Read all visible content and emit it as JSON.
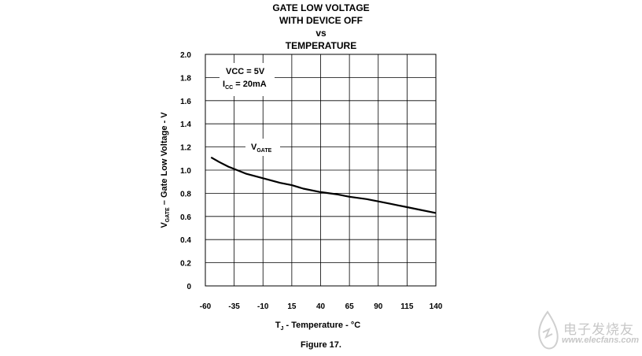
{
  "chart_data": {
    "type": "line",
    "title": [
      "GATE LOW VOLTAGE",
      "WITH DEVICE OFF",
      "vs",
      "TEMPERATURE"
    ],
    "xlabel": {
      "prefix": "T",
      "sub": "J",
      "suffix": " - Temperature - °C"
    },
    "ylabel": {
      "prefix": "V",
      "sub": "GATE",
      "suffix": " – Gate Low Voltage - V"
    },
    "xlim": [
      -60,
      140
    ],
    "ylim": [
      0,
      2.0
    ],
    "xticks": [
      -60,
      -35,
      -10,
      15,
      40,
      65,
      90,
      115,
      140
    ],
    "yticks": [
      "0",
      "0.2",
      "0.4",
      "0.6",
      "0.8",
      "1.0",
      "1.2",
      "1.4",
      "1.6",
      "1.8",
      "2.0"
    ],
    "grid": true,
    "annotations": {
      "vcc": "VCC = 5V",
      "icc_prefix": "I",
      "icc_sub": "CC",
      "icc_suffix": " = 20mA"
    },
    "series": [
      {
        "name": "V_GATE",
        "label_prefix": "V",
        "label_sub": "GATE",
        "x": [
          -55,
          -48,
          -40,
          -35,
          -25,
          -10,
          5,
          15,
          25,
          40,
          55,
          65,
          80,
          90,
          100,
          115,
          125,
          140
        ],
        "y": [
          1.11,
          1.07,
          1.03,
          1.01,
          0.97,
          0.93,
          0.89,
          0.87,
          0.84,
          0.81,
          0.79,
          0.77,
          0.75,
          0.73,
          0.71,
          0.68,
          0.66,
          0.63
        ]
      }
    ]
  },
  "caption": "Figure 17.",
  "watermark": {
    "cn": "电子发烧友",
    "en": "www.elecfans.com"
  }
}
